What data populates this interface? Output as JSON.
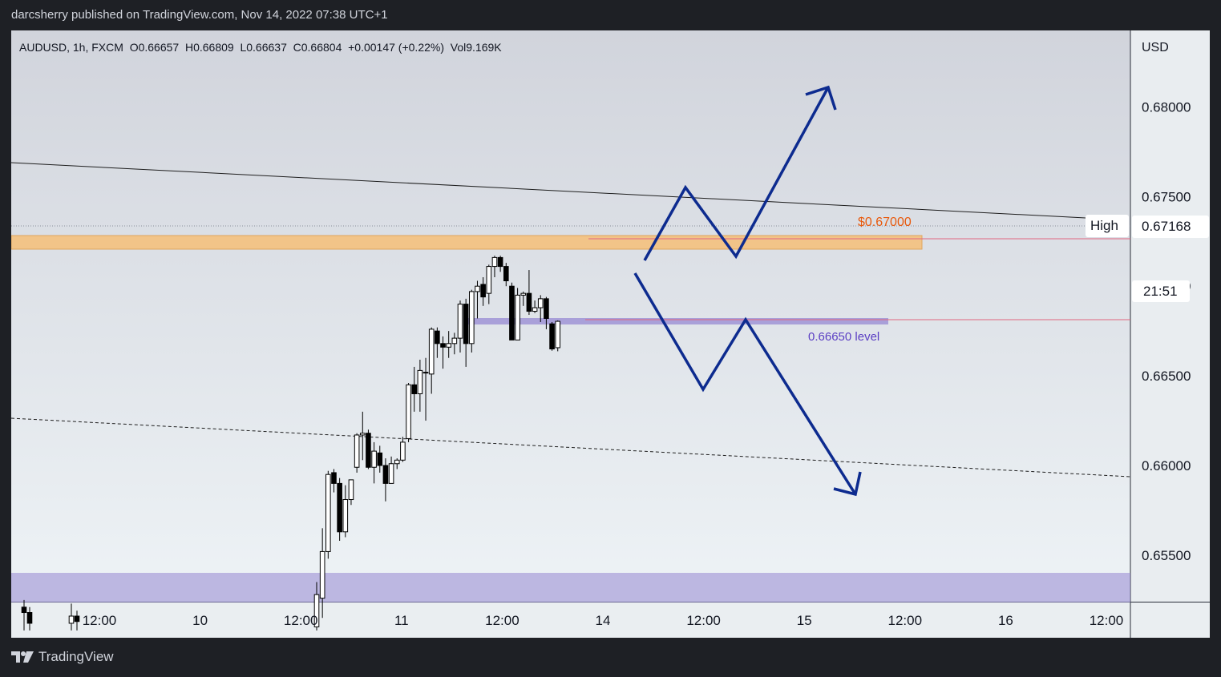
{
  "header": {
    "published_by": "darcsherry published on TradingView.com, Nov 14, 2022 07:38 UTC+1"
  },
  "footer": {
    "brand": "TradingView"
  },
  "chart_data": {
    "type": "candlestick",
    "symbol_line": "AUDUSD, 1h, FXCM  O0.66657  H0.66809  L0.66637  C0.66804  +0.00147 (+0.22%)  Vol9.169K",
    "currency_label": "USD",
    "price_ticks": [
      "0.68000",
      "0.67500",
      "0.67000",
      "0.66500",
      "0.66000",
      "0.65500"
    ],
    "price_tick_values": [
      0.68,
      0.675,
      0.67,
      0.665,
      0.66,
      0.655
    ],
    "time_ticks": [
      "12:00",
      "10",
      "12:00",
      "11",
      "12:00",
      "14",
      "12:00",
      "15",
      "12:00",
      "16",
      "12:00"
    ],
    "ylim": [
      0.6508,
      0.6827
    ],
    "high_label": "High",
    "high_value": "0.67168",
    "countdown": "21:51",
    "annotations": {
      "resistance_label": "$0.67000",
      "support_label": "0.66650 level"
    },
    "colors": {
      "up_body": "#ffffff",
      "down_body": "#000000",
      "wick": "#000000",
      "resistance_zone": "#f5c27e",
      "support_zone": "#9b8fd4",
      "arrows": "#0d2b8f",
      "resistance_text": "#e8590c",
      "support_text": "#5b3fc4"
    },
    "candles": [
      {
        "o": 0.6521,
        "h": 0.6525,
        "l": 0.6508,
        "c": 0.6518
      },
      {
        "o": 0.6518,
        "h": 0.6521,
        "l": 0.6508,
        "c": 0.6512
      },
      {
        "o": 0.6512,
        "h": 0.6523,
        "l": 0.6508,
        "c": 0.6516
      },
      {
        "o": 0.6516,
        "h": 0.6519,
        "l": 0.6508,
        "c": 0.6513
      },
      {
        "o": 0.651,
        "h": 0.6535,
        "l": 0.6508,
        "c": 0.6528
      },
      {
        "o": 0.6526,
        "h": 0.6565,
        "l": 0.6515,
        "c": 0.6552
      },
      {
        "o": 0.6552,
        "h": 0.6597,
        "l": 0.6548,
        "c": 0.6595
      },
      {
        "o": 0.6596,
        "h": 0.6598,
        "l": 0.6585,
        "c": 0.659
      },
      {
        "o": 0.659,
        "h": 0.6593,
        "l": 0.6558,
        "c": 0.6563
      },
      {
        "o": 0.6563,
        "h": 0.6589,
        "l": 0.656,
        "c": 0.6581
      },
      {
        "o": 0.6581,
        "h": 0.6592,
        "l": 0.6578,
        "c": 0.6592
      },
      {
        "o": 0.6599,
        "h": 0.6618,
        "l": 0.6596,
        "c": 0.6617
      },
      {
        "o": 0.6617,
        "h": 0.663,
        "l": 0.6603,
        "c": 0.6618
      },
      {
        "o": 0.6618,
        "h": 0.662,
        "l": 0.6598,
        "c": 0.6599
      },
      {
        "o": 0.6599,
        "h": 0.6613,
        "l": 0.659,
        "c": 0.6608
      },
      {
        "o": 0.6607,
        "h": 0.6611,
        "l": 0.6596,
        "c": 0.66
      },
      {
        "o": 0.66,
        "h": 0.6604,
        "l": 0.658,
        "c": 0.659
      },
      {
        "o": 0.659,
        "h": 0.6605,
        "l": 0.659,
        "c": 0.6601
      },
      {
        "o": 0.6601,
        "h": 0.6604,
        "l": 0.6598,
        "c": 0.6603
      },
      {
        "o": 0.6603,
        "h": 0.6616,
        "l": 0.6602,
        "c": 0.6613
      },
      {
        "o": 0.6615,
        "h": 0.6646,
        "l": 0.6613,
        "c": 0.6645
      },
      {
        "o": 0.6645,
        "h": 0.6655,
        "l": 0.663,
        "c": 0.664
      },
      {
        "o": 0.664,
        "h": 0.6659,
        "l": 0.663,
        "c": 0.6653
      },
      {
        "o": 0.6652,
        "h": 0.666,
        "l": 0.6625,
        "c": 0.6652
      },
      {
        "o": 0.6651,
        "h": 0.6677,
        "l": 0.664,
        "c": 0.6676
      },
      {
        "o": 0.6675,
        "h": 0.6677,
        "l": 0.666,
        "c": 0.6668
      },
      {
        "o": 0.6668,
        "h": 0.6672,
        "l": 0.6654,
        "c": 0.6666
      },
      {
        "o": 0.6666,
        "h": 0.6675,
        "l": 0.666,
        "c": 0.6668
      },
      {
        "o": 0.6668,
        "h": 0.6674,
        "l": 0.6662,
        "c": 0.6671
      },
      {
        "o": 0.6671,
        "h": 0.6692,
        "l": 0.6663,
        "c": 0.669
      },
      {
        "o": 0.669,
        "h": 0.6693,
        "l": 0.6655,
        "c": 0.6668
      },
      {
        "o": 0.6668,
        "h": 0.6698,
        "l": 0.6663,
        "c": 0.6697
      },
      {
        "o": 0.6697,
        "h": 0.6703,
        "l": 0.6682,
        "c": 0.67
      },
      {
        "o": 0.6701,
        "h": 0.6705,
        "l": 0.6689,
        "c": 0.6694
      },
      {
        "o": 0.6696,
        "h": 0.6712,
        "l": 0.669,
        "c": 0.6711
      },
      {
        "o": 0.6711,
        "h": 0.6717,
        "l": 0.6705,
        "c": 0.6716
      },
      {
        "o": 0.6716,
        "h": 0.6717,
        "l": 0.6708,
        "c": 0.6711
      },
      {
        "o": 0.6711,
        "h": 0.6713,
        "l": 0.67,
        "c": 0.6703
      },
      {
        "o": 0.67,
        "h": 0.6702,
        "l": 0.667,
        "c": 0.667
      },
      {
        "o": 0.667,
        "h": 0.6699,
        "l": 0.667,
        "c": 0.6695
      },
      {
        "o": 0.6695,
        "h": 0.6697,
        "l": 0.6689,
        "c": 0.6696
      },
      {
        "o": 0.6696,
        "h": 0.6709,
        "l": 0.6684,
        "c": 0.6686
      },
      {
        "o": 0.6686,
        "h": 0.6692,
        "l": 0.6685,
        "c": 0.6688
      },
      {
        "o": 0.6688,
        "h": 0.6695,
        "l": 0.668,
        "c": 0.6693
      },
      {
        "o": 0.6693,
        "h": 0.6694,
        "l": 0.6676,
        "c": 0.6682
      },
      {
        "o": 0.6679,
        "h": 0.668,
        "l": 0.6664,
        "c": 0.6665
      },
      {
        "o": 0.66657,
        "h": 0.66809,
        "l": 0.66637,
        "c": 0.66804
      }
    ]
  }
}
